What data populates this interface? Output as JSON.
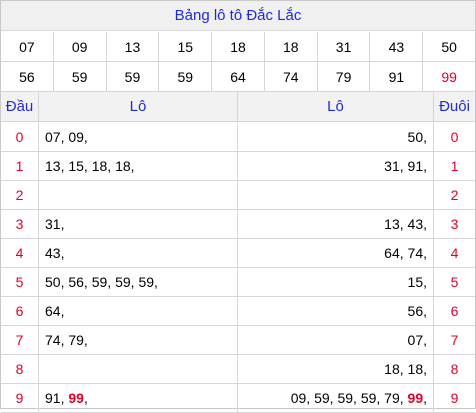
{
  "title": "Bảng lô tô Đắc Lắc",
  "row1": [
    "07",
    "09",
    "13",
    "15",
    "18",
    "18",
    "31",
    "43",
    "50"
  ],
  "row2": [
    "56",
    "59",
    "59",
    "59",
    "64",
    "74",
    "79",
    "91",
    "99"
  ],
  "row2_highlight_index": 8,
  "headers": {
    "dau": "Đầu",
    "lo_left": "Lô",
    "lo_right": "Lô",
    "duoi": "Đuôi"
  },
  "rows": [
    {
      "digit": "0",
      "left": [
        "07",
        "09"
      ],
      "right": [
        "50"
      ]
    },
    {
      "digit": "1",
      "left": [
        "13",
        "15",
        "18",
        "18"
      ],
      "right": [
        "31",
        "91"
      ]
    },
    {
      "digit": "2",
      "left": [],
      "right": []
    },
    {
      "digit": "3",
      "left": [
        "31"
      ],
      "right": [
        "13",
        "43"
      ]
    },
    {
      "digit": "4",
      "left": [
        "43"
      ],
      "right": [
        "64",
        "74"
      ]
    },
    {
      "digit": "5",
      "left": [
        "50",
        "56",
        "59",
        "59",
        "59"
      ],
      "right": [
        "15"
      ]
    },
    {
      "digit": "6",
      "left": [
        "64"
      ],
      "right": [
        "56"
      ]
    },
    {
      "digit": "7",
      "left": [
        "74",
        "79"
      ],
      "right": [
        "07"
      ]
    },
    {
      "digit": "8",
      "left": [],
      "right": [
        "18",
        "18"
      ]
    },
    {
      "digit": "9",
      "left": [
        "91",
        "99"
      ],
      "right": [
        "09",
        "59",
        "59",
        "59",
        "79",
        "99"
      ]
    }
  ],
  "highlight_number": "99",
  "colors": {
    "title": "#1f2bd6",
    "highlight": "#e4002b",
    "header_bg": "#f2f2f2"
  }
}
